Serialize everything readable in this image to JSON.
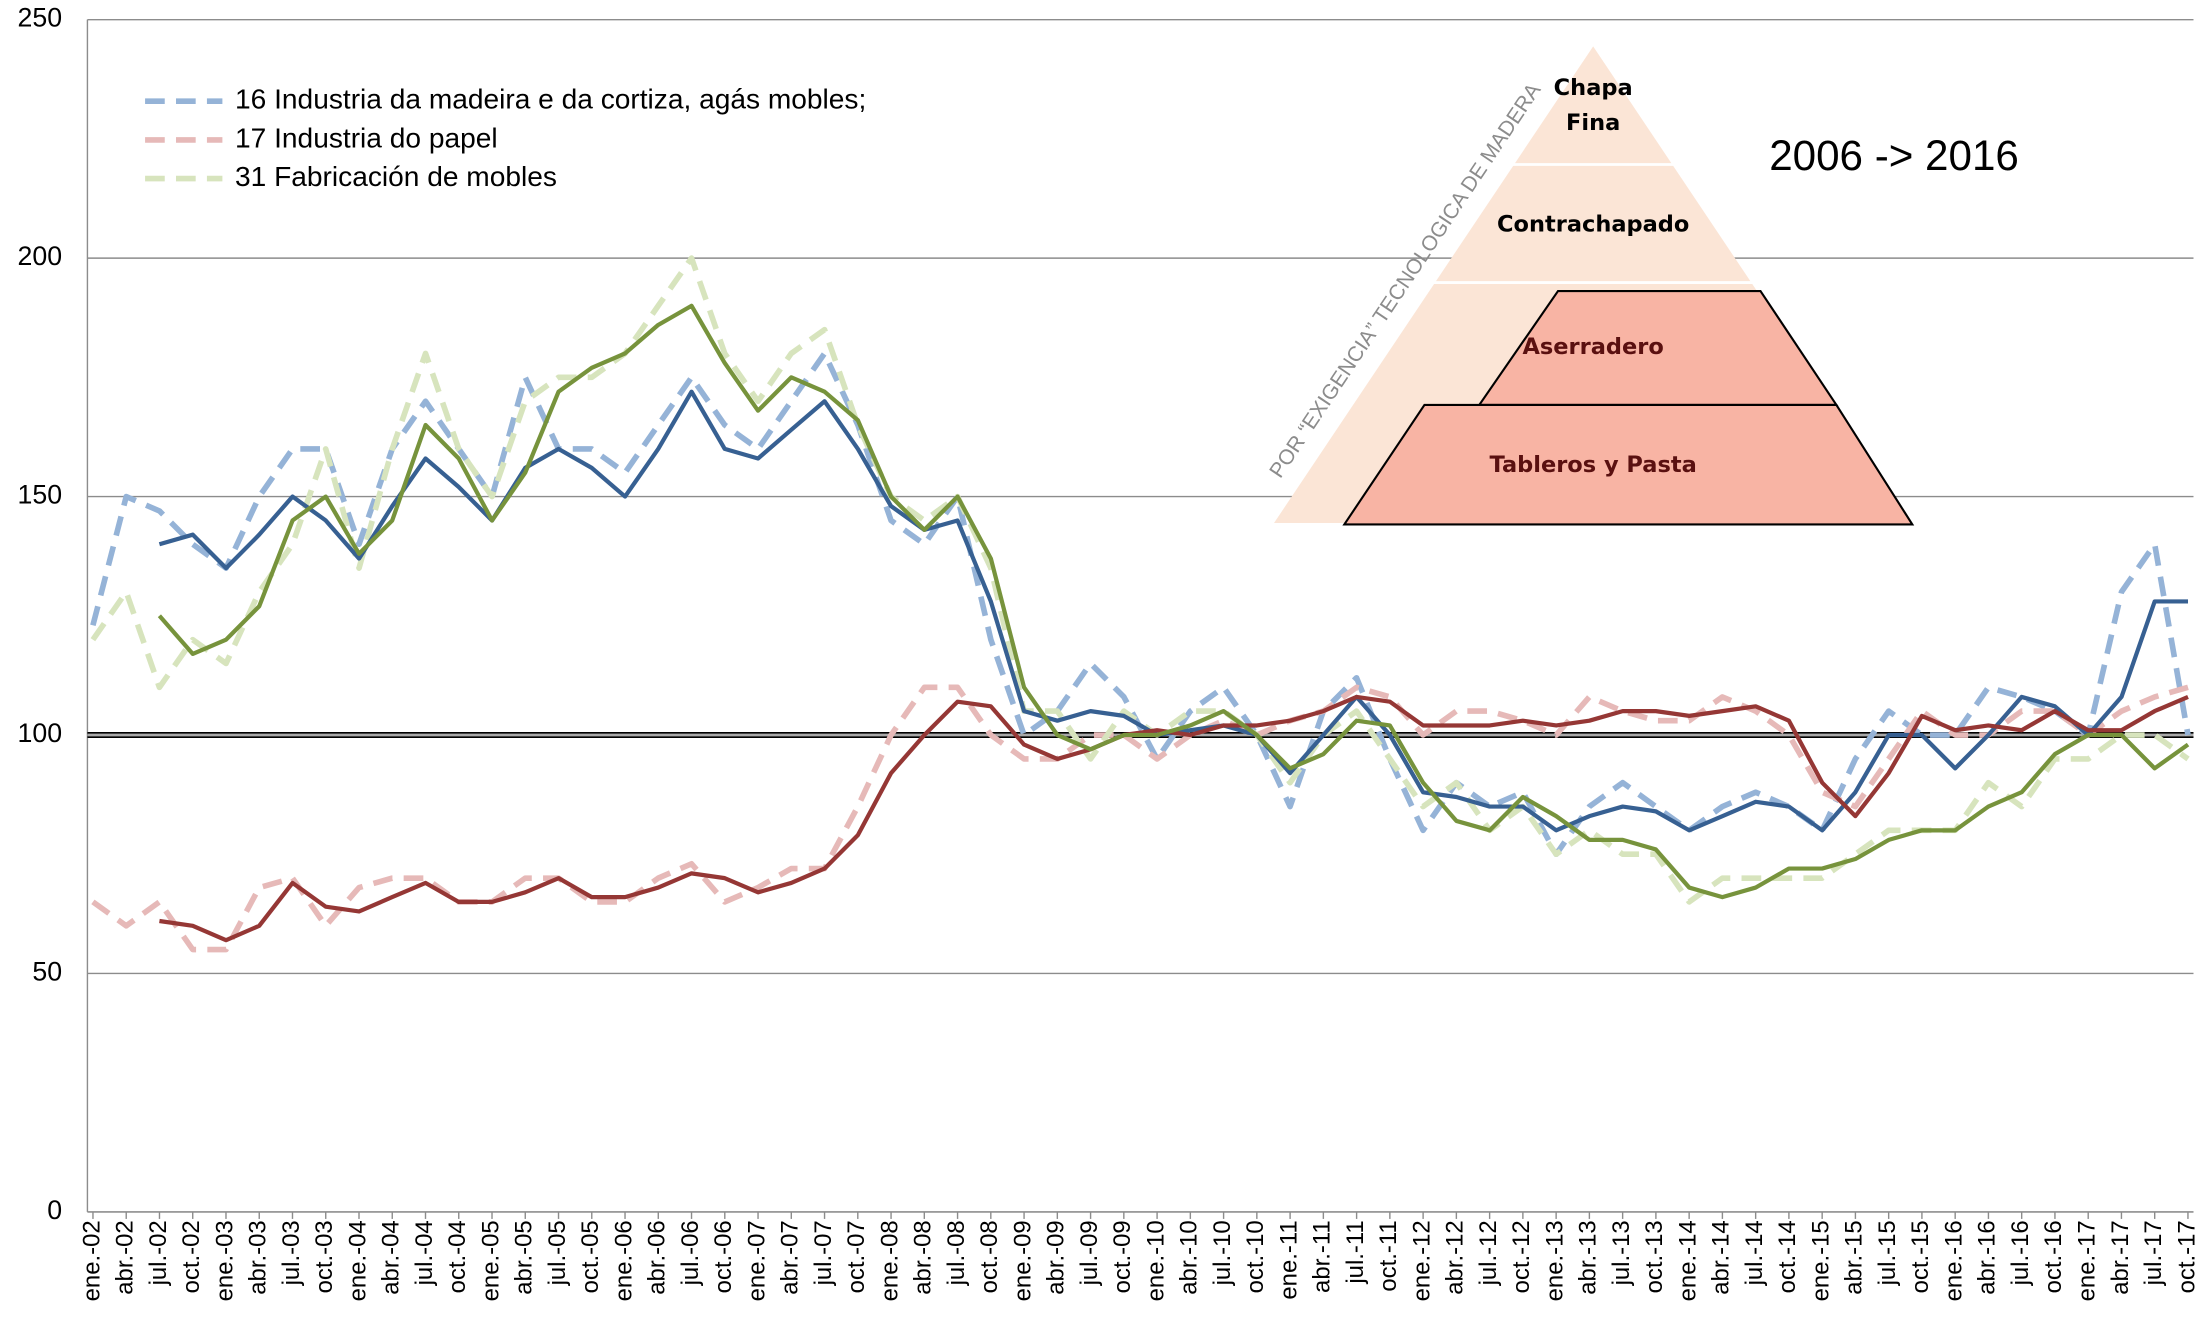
{
  "chart_data": {
    "type": "line",
    "categories": [
      "ene.-02",
      "abr.-02",
      "jul.-02",
      "oct.-02",
      "ene.-03",
      "abr.-03",
      "jul.-03",
      "oct.-03",
      "ene.-04",
      "abr.-04",
      "jul.-04",
      "oct.-04",
      "ene.-05",
      "abr.-05",
      "jul.-05",
      "oct.-05",
      "ene.-06",
      "abr.-06",
      "jul.-06",
      "oct.-06",
      "ene.-07",
      "abr.-07",
      "jul.-07",
      "oct.-07",
      "ene.-08",
      "abr.-08",
      "jul.-08",
      "oct.-08",
      "ene.-09",
      "abr.-09",
      "jul.-09",
      "oct.-09",
      "ene.-10",
      "abr.-10",
      "jul.-10",
      "oct.-10",
      "ene.-11",
      "abr.-11",
      "jul.-11",
      "oct.-11",
      "ene.-12",
      "abr.-12",
      "jul.-12",
      "oct.-12",
      "ene.-13",
      "abr.-13",
      "jul.-13",
      "oct.-13",
      "ene.-14",
      "abr.-14",
      "jul.-14",
      "oct.-14",
      "ene.-15",
      "abr.-15",
      "jul.-15",
      "oct.-15",
      "ene.-16",
      "abr.-16",
      "jul.-16",
      "oct.-16",
      "ene.-17",
      "abr.-17",
      "jul.-17",
      "oct.-17"
    ],
    "series": [
      {
        "name": "16 Industria da madeira e da cortiza, agás mobles;",
        "color": "#95b3d7",
        "dashed": true,
        "values": [
          123,
          150,
          147,
          140,
          135,
          150,
          160,
          160,
          140,
          160,
          170,
          160,
          150,
          175,
          160,
          160,
          155,
          165,
          175,
          165,
          160,
          170,
          180,
          165,
          145,
          140,
          150,
          120,
          100,
          105,
          115,
          108,
          95,
          105,
          110,
          100,
          85,
          105,
          112,
          95,
          80,
          90,
          85,
          88,
          75,
          85,
          90,
          85,
          80,
          85,
          88,
          85,
          80,
          95,
          105,
          100,
          100,
          110,
          108,
          105,
          100,
          130,
          140,
          100
        ]
      },
      {
        "name": "17 Industria do papel",
        "color": "#e6b9b8",
        "dashed": true,
        "values": [
          65,
          60,
          65,
          55,
          55,
          68,
          70,
          60,
          68,
          70,
          70,
          65,
          65,
          70,
          70,
          65,
          65,
          70,
          73,
          65,
          68,
          72,
          72,
          85,
          100,
          110,
          110,
          100,
          95,
          95,
          100,
          100,
          95,
          100,
          103,
          100,
          103,
          105,
          110,
          108,
          100,
          105,
          105,
          103,
          100,
          108,
          105,
          103,
          103,
          108,
          105,
          100,
          88,
          85,
          95,
          105,
          100,
          100,
          105,
          105,
          100,
          105,
          108,
          110
        ]
      },
      {
        "name": "31 Fabricación de mobles",
        "color": "#d7e4bd",
        "dashed": true,
        "values": [
          120,
          130,
          110,
          120,
          115,
          130,
          140,
          160,
          135,
          160,
          180,
          160,
          150,
          170,
          175,
          175,
          180,
          190,
          200,
          180,
          170,
          180,
          185,
          165,
          150,
          145,
          150,
          135,
          105,
          105,
          95,
          105,
          100,
          105,
          105,
          100,
          90,
          100,
          105,
          95,
          85,
          90,
          80,
          85,
          75,
          80,
          75,
          75,
          65,
          70,
          70,
          70,
          70,
          75,
          80,
          80,
          80,
          90,
          85,
          95,
          95,
          100,
          100,
          95
        ]
      },
      {
        "color": "#376092",
        "dashed": false,
        "values": [
          null,
          null,
          140,
          142,
          135,
          142,
          150,
          145,
          137,
          148,
          158,
          152,
          145,
          156,
          160,
          156,
          150,
          160,
          172,
          160,
          158,
          164,
          170,
          160,
          148,
          143,
          145,
          128,
          105,
          103,
          105,
          104,
          100,
          101,
          102,
          100,
          92,
          100,
          108,
          100,
          88,
          87,
          85,
          85,
          80,
          83,
          85,
          84,
          80,
          83,
          86,
          85,
          80,
          88,
          100,
          100,
          93,
          100,
          108,
          106,
          100,
          108,
          128,
          128
        ]
      },
      {
        "color": "#953735",
        "dashed": false,
        "values": [
          null,
          null,
          61,
          60,
          57,
          60,
          69,
          64,
          63,
          66,
          69,
          65,
          65,
          67,
          70,
          66,
          66,
          68,
          71,
          70,
          67,
          69,
          72,
          79,
          92,
          100,
          107,
          106,
          98,
          95,
          97,
          100,
          101,
          100,
          102,
          102,
          103,
          105,
          108,
          107,
          102,
          102,
          102,
          103,
          102,
          103,
          105,
          105,
          104,
          105,
          106,
          103,
          90,
          83,
          92,
          104,
          101,
          102,
          101,
          105,
          101,
          101,
          105,
          108
        ]
      },
      {
        "color": "#77933c",
        "dashed": false,
        "values": [
          null,
          null,
          125,
          117,
          120,
          127,
          145,
          150,
          138,
          145,
          165,
          158,
          145,
          155,
          172,
          177,
          180,
          186,
          190,
          178,
          168,
          175,
          172,
          166,
          150,
          143,
          150,
          137,
          110,
          100,
          97,
          100,
          100,
          102,
          105,
          100,
          93,
          96,
          103,
          102,
          90,
          82,
          80,
          87,
          83,
          78,
          78,
          76,
          68,
          66,
          68,
          72,
          72,
          74,
          78,
          80,
          80,
          85,
          88,
          96,
          100,
          100,
          93,
          98
        ]
      }
    ],
    "ylim": [
      0,
      250
    ],
    "yticks": [
      0,
      50,
      100,
      150,
      200,
      250
    ],
    "grid": true,
    "reference_line": 100,
    "legend": "upper left",
    "pyramid": {
      "axis_label": "POR “EXIGENCIA” TECNOLOGICA DE MADERA",
      "levels": [
        "Chapa",
        "Fina",
        "Contrachapado",
        "Aserradero",
        "Tableros y Pasta"
      ]
    },
    "note": "2006 -> 2016"
  }
}
